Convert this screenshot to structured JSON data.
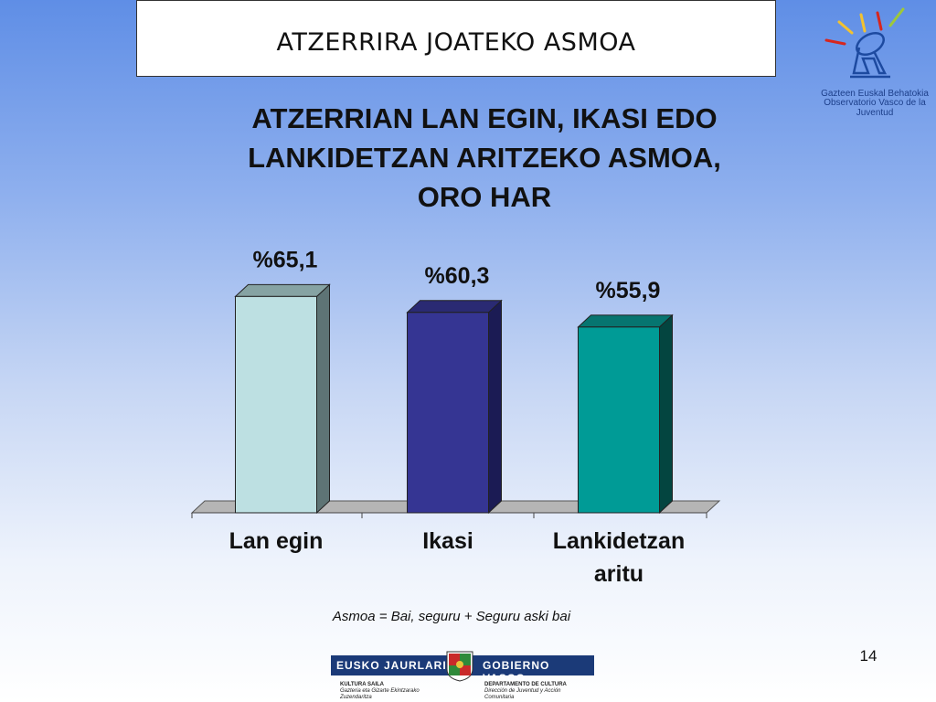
{
  "slide": {
    "header_title": "ATZERRIRA JOATEKO ASMOA",
    "observatory_logo_line1": "Gazteen Euskal Behatokia",
    "observatory_logo_line2": "Observatorio Vasco de la Juventud",
    "note": "Asmoa = Bai, seguru + Seguru aski bai",
    "page_number": "14"
  },
  "footer": {
    "left_label": "EUSKO JAURLARITZA",
    "right_label": "GOBIERNO VASCO",
    "dept_left_title": "KULTURA SAILA",
    "dept_left_line1": "Gazteria eta Gizarte Ekintzarako",
    "dept_left_line2": "Zuzendaritza",
    "dept_right_title": "DEPARTAMENTO DE CULTURA",
    "dept_right_line1": "Dirección de Juventud y Acción",
    "dept_right_line2": "Comunitaria"
  },
  "chart_data": {
    "type": "bar",
    "title_lines": [
      "ATZERRIAN LAN EGIN, IKASI EDO",
      "LANKIDETZAN ARITZEKO ASMOA,",
      "ORO HAR"
    ],
    "categories": [
      [
        "Lan egin"
      ],
      [
        "Ikasi"
      ],
      [
        "Lankidetzan",
        "aritu"
      ]
    ],
    "values": [
      65.1,
      60.3,
      55.9
    ],
    "data_labels": [
      "%65,1",
      "%60,3",
      "%55,9"
    ],
    "unit": "%",
    "grid": false,
    "legend": "none",
    "colors": [
      {
        "front": "#bde0e2",
        "side": "#5e7475",
        "top": "#86a3a3"
      },
      {
        "front": "#353593",
        "side": "#1b1b54",
        "top": "#2a2a73"
      },
      {
        "front": "#009b96",
        "side": "#034540",
        "top": "#067570"
      }
    ],
    "floor_color": "#b5b5b5"
  }
}
